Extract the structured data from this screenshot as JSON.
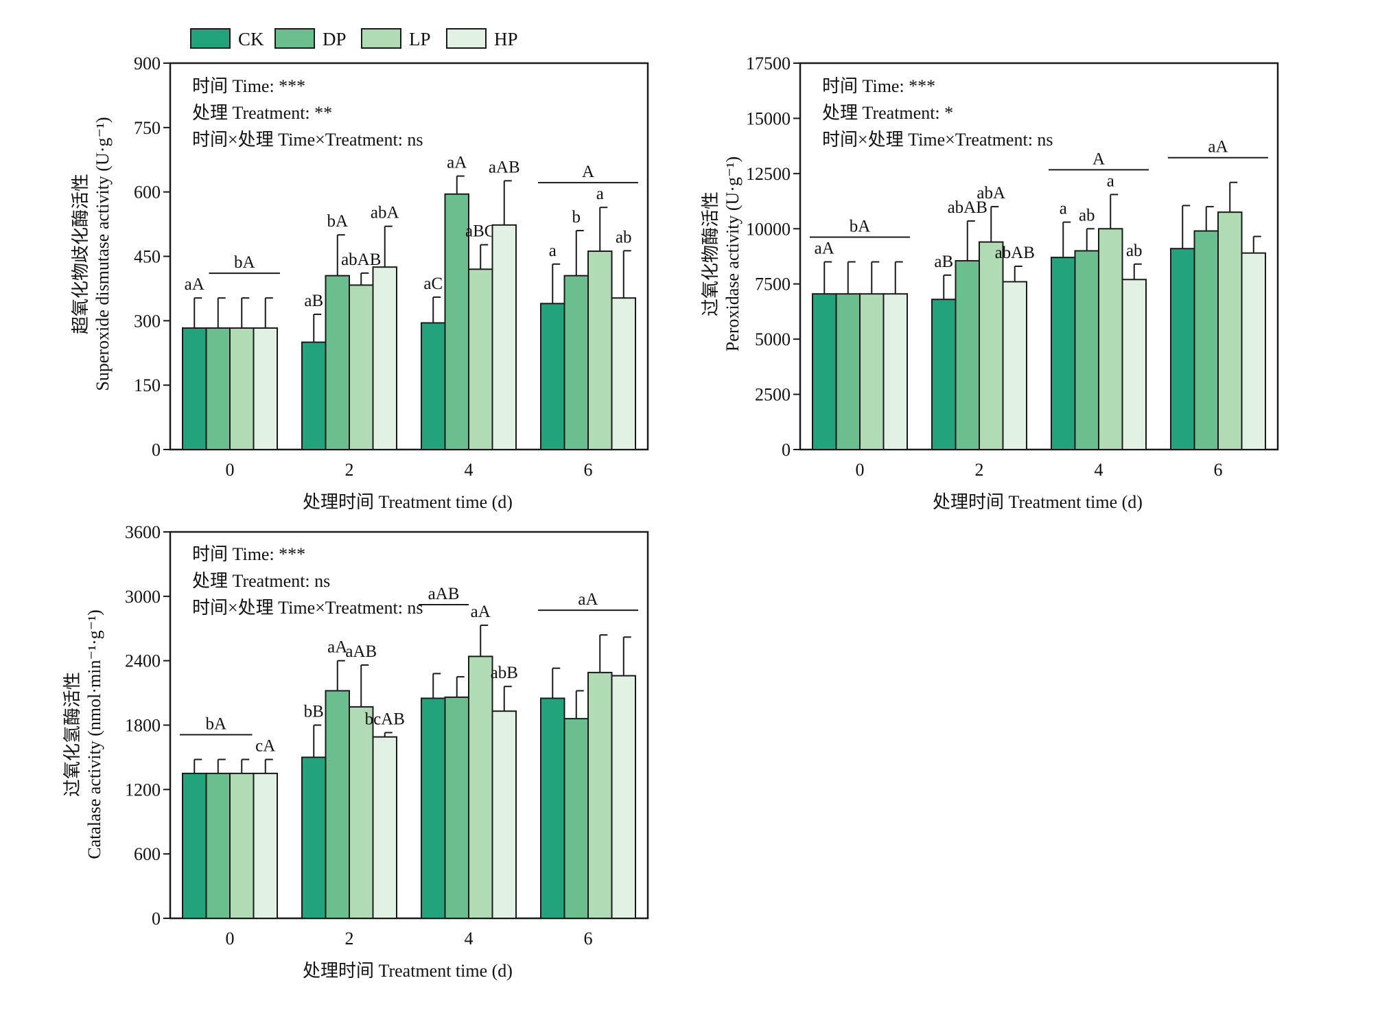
{
  "legend": [
    {
      "name": "CK",
      "color": "#22a37c"
    },
    {
      "name": "DP",
      "color": "#6bbf8e"
    },
    {
      "name": "LP",
      "color": "#b0dbb5"
    },
    {
      "name": "HP",
      "color": "#e1f1e3"
    }
  ],
  "chart_data": [
    {
      "type": "bar",
      "categories": [
        "0",
        "2",
        "4",
        "6"
      ],
      "xlabel": "处理时间 Treatment time (d)",
      "ylabel_cn": "超氧化物歧化酶活性",
      "ylabel_en": "Superoxide dismutase activity (U·g⁻¹)",
      "ylim": [
        0,
        900
      ],
      "yticks": [
        "0",
        "150",
        "300",
        "450",
        "600",
        "750",
        "900"
      ],
      "stats": [
        "时间 Time: ***",
        "处理 Treatment: **",
        "时间×处理 Time×Treatment: ns"
      ],
      "series": [
        {
          "name": "CK",
          "values": [
            283,
            250,
            295,
            340
          ],
          "errors": [
            70,
            65,
            60,
            92
          ]
        },
        {
          "name": "DP",
          "values": [
            283,
            405,
            595,
            405
          ],
          "errors": [
            70,
            95,
            42,
            105
          ]
        },
        {
          "name": "LP",
          "values": [
            283,
            383,
            420,
            462
          ],
          "errors": [
            70,
            28,
            57,
            102
          ]
        },
        {
          "name": "HP",
          "values": [
            283,
            425,
            523,
            353
          ],
          "errors": [
            70,
            95,
            103,
            110
          ]
        }
      ],
      "bar_labels": [
        [
          "aA",
          "",
          "",
          ""
        ],
        [
          "aB",
          "bA",
          "abAB",
          "abA"
        ],
        [
          "aC",
          "aA",
          "aBC",
          "aAB"
        ],
        [
          "a",
          "b",
          "a",
          "ab"
        ]
      ],
      "group_labels": [
        "bA",
        "",
        "",
        "A"
      ]
    },
    {
      "type": "bar",
      "categories": [
        "0",
        "2",
        "4",
        "6"
      ],
      "xlabel": "处理时间 Treatment time (d)",
      "ylabel_cn": "过氧化物酶活性",
      "ylabel_en": "Peroxidase activity (U·g⁻¹)",
      "ylim": [
        0,
        17500
      ],
      "yticks": [
        "0",
        "2500",
        "5000",
        "7500",
        "10000",
        "12500",
        "15000",
        "17500"
      ],
      "stats": [
        "时间 Time: ***",
        "处理 Treatment: *",
        "时间×处理 Time×Treatment: ns"
      ],
      "series": [
        {
          "name": "CK",
          "values": [
            7050,
            6800,
            8700,
            9100
          ],
          "errors": [
            1450,
            1100,
            1600,
            1950
          ]
        },
        {
          "name": "DP",
          "values": [
            7050,
            8550,
            9000,
            9900
          ],
          "errors": [
            1450,
            1800,
            1000,
            1100
          ]
        },
        {
          "name": "LP",
          "values": [
            7050,
            9400,
            10000,
            10750
          ],
          "errors": [
            1450,
            1600,
            1550,
            1350
          ]
        },
        {
          "name": "HP",
          "values": [
            7050,
            7600,
            7700,
            8900
          ],
          "errors": [
            1450,
            700,
            700,
            750
          ]
        }
      ],
      "bar_labels": [
        [
          "aA",
          "",
          "",
          ""
        ],
        [
          "aB",
          "abAB",
          "abA",
          "abAB"
        ],
        [
          "a",
          "ab",
          "a",
          "ab"
        ],
        [
          "",
          "",
          "",
          ""
        ]
      ],
      "group_labels": [
        "bA",
        "",
        "A",
        "aA"
      ]
    },
    {
      "type": "bar",
      "categories": [
        "0",
        "2",
        "4",
        "6"
      ],
      "xlabel": "处理时间 Treatment time (d)",
      "ylabel_cn": "过氧化氢酶活性",
      "ylabel_en": "Catalase activity (nmol·min⁻¹·g⁻¹)",
      "ylim": [
        0,
        3600
      ],
      "yticks": [
        "0",
        "600",
        "1200",
        "1800",
        "2400",
        "3000",
        "3600"
      ],
      "stats": [
        "时间 Time: ***",
        "处理 Treatment: ns",
        "时间×处理 Time×Treatment: ns"
      ],
      "series": [
        {
          "name": "CK",
          "values": [
            1350,
            1500,
            2050,
            2050
          ],
          "errors": [
            130,
            300,
            230,
            280
          ]
        },
        {
          "name": "DP",
          "values": [
            1350,
            2120,
            2060,
            1860
          ],
          "errors": [
            130,
            280,
            190,
            260
          ]
        },
        {
          "name": "LP",
          "values": [
            1350,
            1970,
            2440,
            2290
          ],
          "errors": [
            130,
            390,
            290,
            350
          ]
        },
        {
          "name": "HP",
          "values": [
            1350,
            1690,
            1930,
            2260
          ],
          "errors": [
            130,
            40,
            230,
            360
          ]
        }
      ],
      "bar_labels": [
        [
          "",
          "",
          "",
          "cA"
        ],
        [
          "bB",
          "aA",
          "aAB",
          "bcAB"
        ],
        [
          "",
          "",
          "aA",
          "abB"
        ],
        [
          "",
          "",
          "",
          ""
        ]
      ],
      "group_labels": [
        "bA",
        "",
        "aAB",
        "aA"
      ]
    }
  ]
}
